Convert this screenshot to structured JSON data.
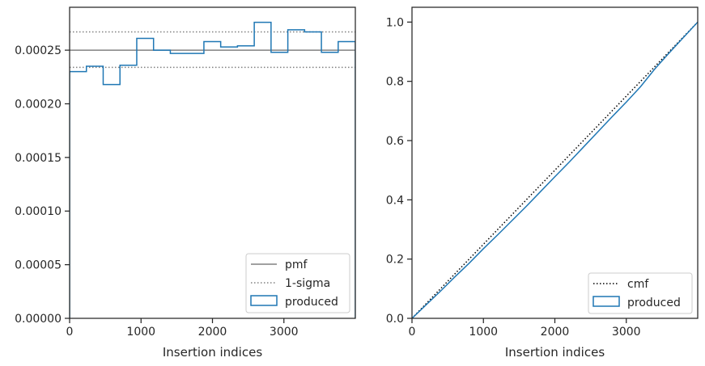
{
  "chart_data": [
    {
      "type": "step",
      "xlabel": "Insertion indices",
      "xlim": [
        0,
        4000
      ],
      "ylim": [
        0,
        0.00029
      ],
      "xticks": [
        0,
        1000,
        2000,
        3000
      ],
      "xtick_labels": [
        "0",
        "1000",
        "2000",
        "3000"
      ],
      "yticks": [
        0,
        5e-05,
        0.0001,
        0.00015,
        0.0002,
        0.00025
      ],
      "ytick_labels": [
        "0.00000",
        "0.00005",
        "0.00010",
        "0.00015",
        "0.00020",
        "0.00025"
      ],
      "legend_position": "lower right",
      "grid": false,
      "reference_lines": [
        {
          "name": "pmf",
          "value": 0.00025,
          "style": "solid",
          "color": "#808080"
        },
        {
          "name": "1-sigma",
          "value": 0.000267,
          "style": "dotted",
          "color": "#808080"
        },
        {
          "name": "1-sigma",
          "value": 0.000234,
          "style": "dotted",
          "color": "#808080"
        }
      ],
      "series": [
        {
          "name": "produced",
          "color": "#1f77b4",
          "bin_edges": [
            0,
            235,
            470,
            705,
            940,
            1175,
            1410,
            1645,
            1880,
            2115,
            2350,
            2585,
            2820,
            3055,
            3290,
            3525,
            3760,
            4000
          ],
          "values": [
            0.00023,
            0.000235,
            0.000218,
            0.000236,
            0.000261,
            0.00025,
            0.000247,
            0.000247,
            0.000258,
            0.000253,
            0.000254,
            0.000276,
            0.000248,
            0.000269,
            0.000267,
            0.000248,
            0.000258
          ]
        }
      ],
      "legend": [
        "pmf",
        "1-sigma",
        "produced"
      ]
    },
    {
      "type": "line",
      "xlabel": "Insertion indices",
      "xlim": [
        0,
        4000
      ],
      "ylim": [
        0,
        1.05
      ],
      "xticks": [
        0,
        1000,
        2000,
        3000
      ],
      "xtick_labels": [
        "0",
        "1000",
        "2000",
        "3000"
      ],
      "yticks": [
        0,
        0.2,
        0.4,
        0.6,
        0.8,
        1.0
      ],
      "ytick_labels": [
        "0.0",
        "0.2",
        "0.4",
        "0.6",
        "0.8",
        "1.0"
      ],
      "legend_position": "lower right",
      "grid": false,
      "series": [
        {
          "name": "cmf",
          "style": "dotted",
          "color": "#000000",
          "x": [
            0,
            4000
          ],
          "y": [
            0,
            1.0
          ]
        },
        {
          "name": "produced",
          "style": "solid",
          "color": "#1f77b4",
          "x": [
            0,
            200,
            400,
            600,
            800,
            1000,
            1200,
            1400,
            1600,
            1800,
            2000,
            2200,
            2400,
            2600,
            2800,
            3000,
            3200,
            3400,
            3600,
            3800,
            4000
          ],
          "y": [
            0,
            0.046,
            0.092,
            0.14,
            0.186,
            0.235,
            0.282,
            0.33,
            0.378,
            0.428,
            0.478,
            0.527,
            0.578,
            0.629,
            0.68,
            0.73,
            0.782,
            0.842,
            0.896,
            0.948,
            1.0
          ]
        }
      ],
      "legend": [
        "cmf",
        "produced"
      ]
    }
  ]
}
